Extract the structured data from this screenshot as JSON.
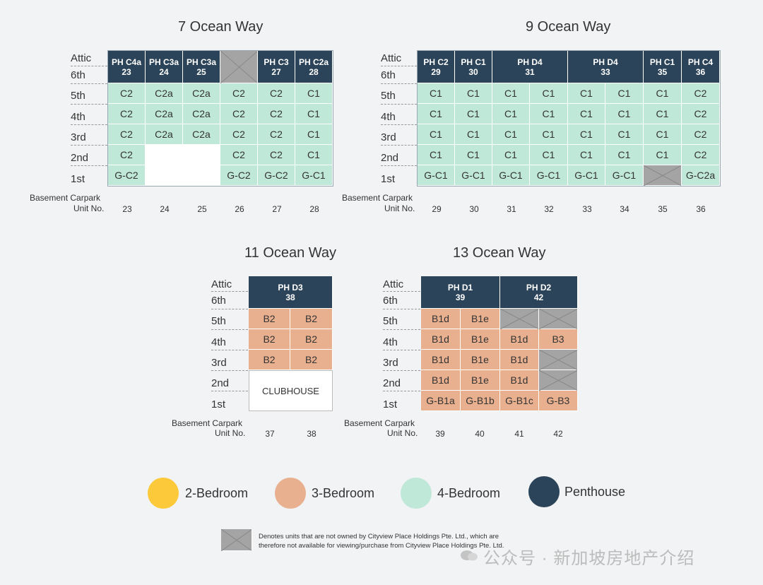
{
  "floor_labels": [
    "Attic",
    "6th",
    "5th",
    "4th",
    "3rd",
    "2nd",
    "1st"
  ],
  "basement_label": "Basement Carpark",
  "unit_no_label": "Unit No.",
  "buildings": {
    "b7": {
      "title": "7 Ocean Way",
      "penthouses": [
        {
          "name": "PH C4a",
          "unit": "23"
        },
        {
          "name": "PH C3a",
          "unit": "24"
        },
        {
          "name": "PH C3a",
          "unit": "25"
        },
        null,
        {
          "name": "PH C3",
          "unit": "27"
        },
        {
          "name": "PH C2a",
          "unit": "28"
        }
      ],
      "grid": [
        [
          "C2",
          "C2a",
          "C2a",
          "C2",
          "C2",
          "C1"
        ],
        [
          "C2",
          "C2a",
          "C2a",
          "C2",
          "C2",
          "C1"
        ],
        [
          "C2",
          "C2a",
          "C2a",
          "C2",
          "C2",
          "C1"
        ],
        [
          "C2",
          "",
          "",
          "C2",
          "C2",
          "C1"
        ],
        [
          "G-C2",
          "",
          "",
          "G-C2",
          "G-C2",
          "G-C1"
        ]
      ],
      "units": [
        "23",
        "24",
        "25",
        "26",
        "27",
        "28"
      ]
    },
    "b9": {
      "title": "9 Ocean Way",
      "penthouses": [
        {
          "name": "PH C2",
          "unit": "29"
        },
        {
          "name": "PH C1",
          "unit": "30"
        },
        {
          "name": "PH D4",
          "unit": "31"
        },
        {
          "name": "PH D4",
          "unit": "33"
        },
        {
          "name": "PH C1",
          "unit": "35"
        },
        {
          "name": "PH C4",
          "unit": "36"
        }
      ],
      "grid": [
        [
          "C1",
          "C1",
          "C1",
          "C1",
          "C1",
          "C1",
          "C1",
          "C2"
        ],
        [
          "C1",
          "C1",
          "C1",
          "C1",
          "C1",
          "C1",
          "C1",
          "C2"
        ],
        [
          "C1",
          "C1",
          "C1",
          "C1",
          "C1",
          "C1",
          "C1",
          "C2"
        ],
        [
          "C1",
          "C1",
          "C1",
          "C1",
          "C1",
          "C1",
          "C1",
          "C2"
        ],
        [
          "G-C1",
          "G-C1",
          "G-C1",
          "G-C1",
          "G-C1",
          "G-C1",
          "",
          "G-C2a"
        ]
      ],
      "units": [
        "29",
        "30",
        "31",
        "32",
        "33",
        "34",
        "35",
        "36"
      ]
    },
    "b11": {
      "title": "11 Ocean Way",
      "penthouse": {
        "name": "PH D3",
        "unit": "38"
      },
      "grid": [
        [
          "B2",
          "B2"
        ],
        [
          "B2",
          "B2"
        ],
        [
          "B2",
          "B2"
        ]
      ],
      "clubhouse": "CLUBHOUSE",
      "units": [
        "37",
        "38"
      ]
    },
    "b13": {
      "title": "13 Ocean Way",
      "penthouses": [
        {
          "name": "PH D1",
          "unit": "39"
        },
        {
          "name": "PH D2",
          "unit": "42"
        }
      ],
      "grid": [
        [
          "B1d",
          "B1e",
          "",
          ""
        ],
        [
          "B1d",
          "B1e",
          "B1d",
          "B3"
        ],
        [
          "B1d",
          "B1e",
          "B1d",
          ""
        ],
        [
          "B1d",
          "B1e",
          "B1d",
          ""
        ],
        [
          "G-B1a",
          "G-B1b",
          "G-B1c",
          "G-B3"
        ]
      ],
      "units": [
        "39",
        "40",
        "41",
        "42"
      ]
    }
  },
  "legend": [
    {
      "label": "2-Bedroom",
      "color": "#fcc93a"
    },
    {
      "label": "3-Bedroom",
      "color": "#e9b090"
    },
    {
      "label": "4-Bedroom",
      "color": "#bfe8d9"
    },
    {
      "label": "Penthouse",
      "color": "#2b4459"
    }
  ],
  "note": {
    "line1": "Denotes units that are not owned by Cityview Place Holdings Pte. Ltd., which are",
    "line2": "therefore not available for viewing/purchase from Cityview Place Holdings Pte. Ltd."
  },
  "watermark": "公众号 · 新加坡房地产介绍",
  "colors": {
    "penthouse": "#2b4459",
    "four_bed": "#bfe8d9",
    "three_bed": "#e9b090",
    "not_owned": "#a4a4a4"
  }
}
